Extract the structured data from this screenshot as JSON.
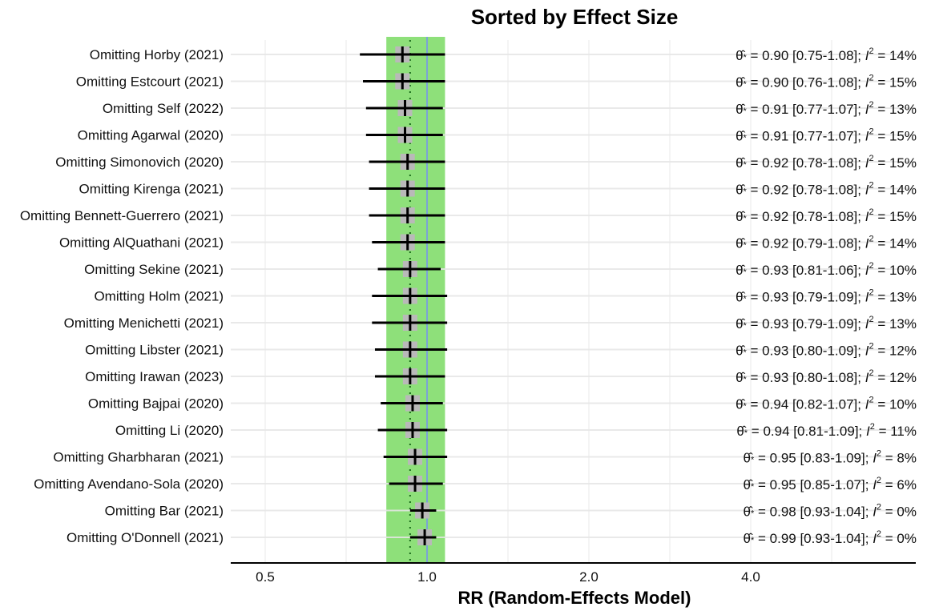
{
  "chart_data": {
    "type": "forest",
    "title": "Sorted by Effect Size",
    "xlabel": "RR (Random-Effects Model)",
    "x_scale": "log2",
    "x_ticks": [
      {
        "value": 0.5,
        "label": "0.5"
      },
      {
        "value": 1.0,
        "label": "1.0"
      },
      {
        "value": 2.0,
        "label": "2.0"
      },
      {
        "value": 4.0,
        "label": "4.0"
      }
    ],
    "xlim": [
      0.46,
      7.5
    ],
    "reference_line": 1.0,
    "pooled_estimate": 0.93,
    "pooled_ci": [
      0.84,
      1.08
    ],
    "band_color": "#8ee07a",
    "reference_line_color": "#7ba3d6",
    "rows": [
      {
        "label": "Omitting Horby (2021)",
        "est": 0.9,
        "lo": 0.75,
        "hi": 1.08,
        "i2": "14%",
        "stat": "= 0.90 [0.75-1.08]; "
      },
      {
        "label": "Omitting Estcourt (2021)",
        "est": 0.9,
        "lo": 0.76,
        "hi": 1.08,
        "i2": "15%",
        "stat": "= 0.90 [0.76-1.08]; "
      },
      {
        "label": "Omitting Self (2022)",
        "est": 0.91,
        "lo": 0.77,
        "hi": 1.07,
        "i2": "13%",
        "stat": "= 0.91 [0.77-1.07]; "
      },
      {
        "label": "Omitting Agarwal (2020)",
        "est": 0.91,
        "lo": 0.77,
        "hi": 1.07,
        "i2": "15%",
        "stat": "= 0.91 [0.77-1.07]; "
      },
      {
        "label": "Omitting Simonovich (2020)",
        "est": 0.92,
        "lo": 0.78,
        "hi": 1.08,
        "i2": "15%",
        "stat": "= 0.92 [0.78-1.08]; "
      },
      {
        "label": "Omitting Kirenga (2021)",
        "est": 0.92,
        "lo": 0.78,
        "hi": 1.08,
        "i2": "14%",
        "stat": "= 0.92 [0.78-1.08]; "
      },
      {
        "label": "Omitting Bennett-Guerrero (2021)",
        "est": 0.92,
        "lo": 0.78,
        "hi": 1.08,
        "i2": "15%",
        "stat": "= 0.92 [0.78-1.08]; "
      },
      {
        "label": "Omitting AlQuathani (2021)",
        "est": 0.92,
        "lo": 0.79,
        "hi": 1.08,
        "i2": "14%",
        "stat": "= 0.92 [0.79-1.08]; "
      },
      {
        "label": "Omitting Sekine (2021)",
        "est": 0.93,
        "lo": 0.81,
        "hi": 1.06,
        "i2": "10%",
        "stat": "= 0.93 [0.81-1.06]; "
      },
      {
        "label": "Omitting Holm (2021)",
        "est": 0.93,
        "lo": 0.79,
        "hi": 1.09,
        "i2": "13%",
        "stat": "= 0.93 [0.79-1.09]; "
      },
      {
        "label": "Omitting Menichetti (2021)",
        "est": 0.93,
        "lo": 0.79,
        "hi": 1.09,
        "i2": "13%",
        "stat": "= 0.93 [0.79-1.09]; "
      },
      {
        "label": "Omitting Libster (2021)",
        "est": 0.93,
        "lo": 0.8,
        "hi": 1.09,
        "i2": "12%",
        "stat": "= 0.93 [0.80-1.09]; "
      },
      {
        "label": "Omitting Irawan (2023)",
        "est": 0.93,
        "lo": 0.8,
        "hi": 1.08,
        "i2": "12%",
        "stat": "= 0.93 [0.80-1.08]; "
      },
      {
        "label": "Omitting Bajpai (2020)",
        "est": 0.94,
        "lo": 0.82,
        "hi": 1.07,
        "i2": "10%",
        "stat": "= 0.94 [0.82-1.07]; "
      },
      {
        "label": "Omitting Li (2020)",
        "est": 0.94,
        "lo": 0.81,
        "hi": 1.09,
        "i2": "11%",
        "stat": "= 0.94 [0.81-1.09]; "
      },
      {
        "label": "Omitting Gharbharan (2021)",
        "est": 0.95,
        "lo": 0.83,
        "hi": 1.09,
        "i2": " 8%",
        "stat": "= 0.95 [0.83-1.09]; "
      },
      {
        "label": "Omitting Avendano-Sola (2020)",
        "est": 0.95,
        "lo": 0.85,
        "hi": 1.07,
        "i2": " 6%",
        "stat": "= 0.95 [0.85-1.07]; "
      },
      {
        "label": "Omitting Bar (2021)",
        "est": 0.98,
        "lo": 0.93,
        "hi": 1.04,
        "i2": " 0%",
        "stat": "= 0.98 [0.93-1.04]; "
      },
      {
        "label": "Omitting O'Donnell (2021)",
        "est": 0.99,
        "lo": 0.93,
        "hi": 1.04,
        "i2": " 0%",
        "stat": "= 0.99 [0.93-1.04]; "
      }
    ],
    "stat_symbol": "θ̂",
    "stat_subscript": "*",
    "i2_symbol": "I",
    "i2_superscript": "2",
    "i2_equals": " = "
  }
}
